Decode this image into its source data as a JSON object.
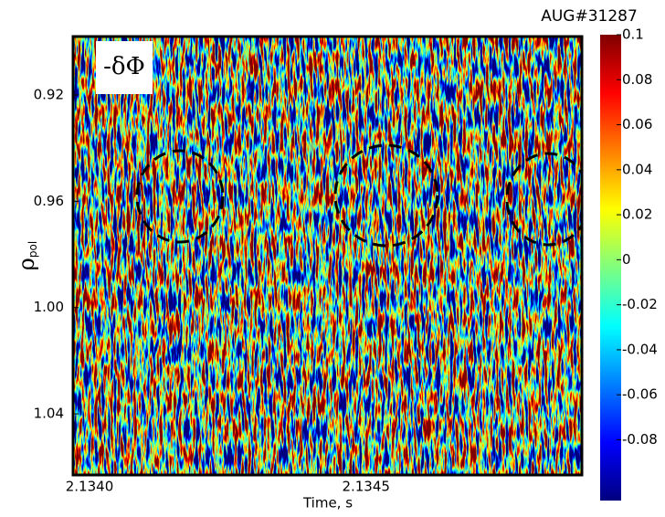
{
  "chart_data": {
    "type": "heatmap",
    "title": "AUG#31287",
    "annotation": "-δΦ",
    "xlabel": "Time, s",
    "ylabel": "ρ",
    "ylabel_subscript": "pol",
    "xlim": [
      2.134,
      2.13492
    ],
    "xticks": [
      {
        "value": 2.134,
        "label": "2.1340"
      },
      2.1345
    ],
    "ylim": [
      0.898,
      1.063
    ],
    "y_inverted": true,
    "yticks": [
      0.92,
      0.96,
      {
        "value": 1.0,
        "label": "1.00"
      },
      1.04
    ],
    "clim": [
      -0.107,
      0.1
    ],
    "cticks": [
      0.1,
      0.08,
      0.06,
      0.04,
      0.02,
      0,
      -0.02,
      -0.04,
      -0.06,
      -0.08
    ],
    "colormap": "jet"
  }
}
